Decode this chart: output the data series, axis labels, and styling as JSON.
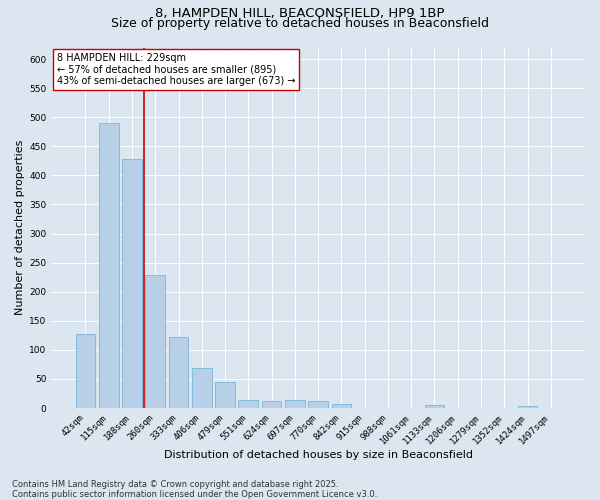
{
  "title": "8, HAMPDEN HILL, BEACONSFIELD, HP9 1BP",
  "subtitle": "Size of property relative to detached houses in Beaconsfield",
  "xlabel": "Distribution of detached houses by size in Beaconsfield",
  "ylabel": "Number of detached properties",
  "categories": [
    "42sqm",
    "115sqm",
    "188sqm",
    "260sqm",
    "333sqm",
    "406sqm",
    "479sqm",
    "551sqm",
    "624sqm",
    "697sqm",
    "770sqm",
    "842sqm",
    "915sqm",
    "988sqm",
    "1061sqm",
    "1133sqm",
    "1206sqm",
    "1279sqm",
    "1352sqm",
    "1424sqm",
    "1497sqm"
  ],
  "values": [
    128,
    490,
    428,
    228,
    122,
    68,
    44,
    14,
    12,
    14,
    12,
    7,
    0,
    0,
    0,
    5,
    0,
    0,
    0,
    3,
    0
  ],
  "bar_color": "#b8cfe8",
  "bar_edge_color": "#6baed6",
  "background_color": "#dce6f0",
  "grid_color": "#ffffff",
  "vline_color": "#cc0000",
  "annotation_text": "8 HAMPDEN HILL: 229sqm\n← 57% of detached houses are smaller (895)\n43% of semi-detached houses are larger (673) →",
  "annotation_box_color": "white",
  "annotation_box_edge_color": "#cc0000",
  "ylim": [
    0,
    620
  ],
  "yticks": [
    0,
    50,
    100,
    150,
    200,
    250,
    300,
    350,
    400,
    450,
    500,
    550,
    600
  ],
  "footnote": "Contains HM Land Registry data © Crown copyright and database right 2025.\nContains public sector information licensed under the Open Government Licence v3.0.",
  "title_fontsize": 9.5,
  "subtitle_fontsize": 9,
  "label_fontsize": 8,
  "annot_fontsize": 7,
  "tick_fontsize": 6.5,
  "footnote_fontsize": 6
}
